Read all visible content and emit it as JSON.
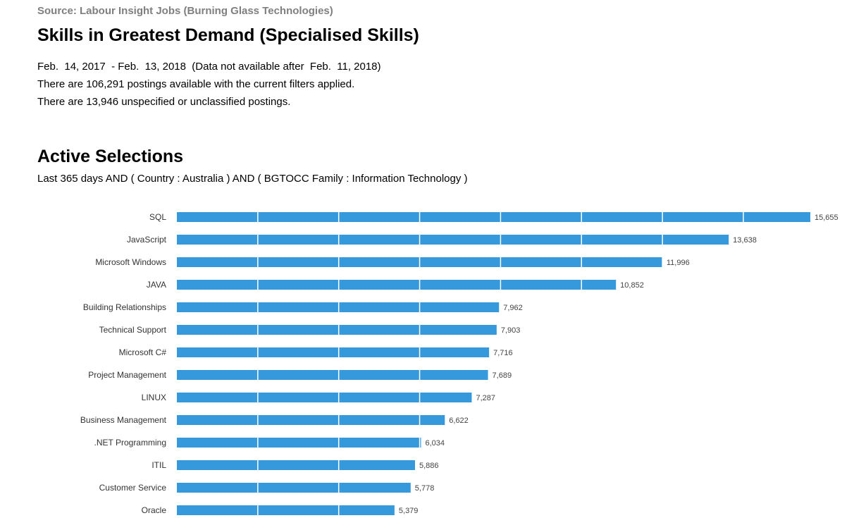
{
  "report": {
    "source": "Source: Labour Insight Jobs (Burning Glass Technologies)",
    "title": "Skills in Greatest Demand (Specialised Skills)",
    "date_range": "Feb.  14, 2017  - Feb.  13, 2018  (Data not available after  Feb.  11, 2018)",
    "postings_note": "There are 106,291 postings available with the current filters applied.",
    "unclassified_note": "There are 13,946 unspecified or unclassified postings."
  },
  "active_selections": {
    "heading": "Active Selections",
    "filter": "Last 365 days AND ( Country : Australia ) AND ( BGTOCC Family : Information Technology )"
  },
  "colors": {
    "bar": "#3599dc",
    "gridline": "#ffffff",
    "label": "#333333",
    "value_label": "#444444"
  },
  "chart_data": {
    "type": "bar",
    "orientation": "horizontal",
    "categories": [
      "SQL",
      "JavaScript",
      "Microsoft Windows",
      "JAVA",
      "Building Relationships",
      "Technical Support",
      "Microsoft C#",
      "Project Management",
      "LINUX",
      "Business Management",
      ".NET Programming",
      "ITIL",
      "Customer Service",
      "Oracle"
    ],
    "values": [
      15655,
      13638,
      11996,
      10852,
      7962,
      7903,
      7716,
      7689,
      7287,
      6622,
      6034,
      5886,
      5778,
      5379
    ],
    "value_labels": [
      "15,655",
      "13,638",
      "11,996",
      "10,852",
      "7,962",
      "7,903",
      "7,716",
      "7,689",
      "7,287",
      "6,622",
      "6,034",
      "5,886",
      "5,778",
      "5,379"
    ],
    "xlim": [
      0,
      15655
    ],
    "grid_step": 2000,
    "grid": true,
    "legend": "none"
  }
}
